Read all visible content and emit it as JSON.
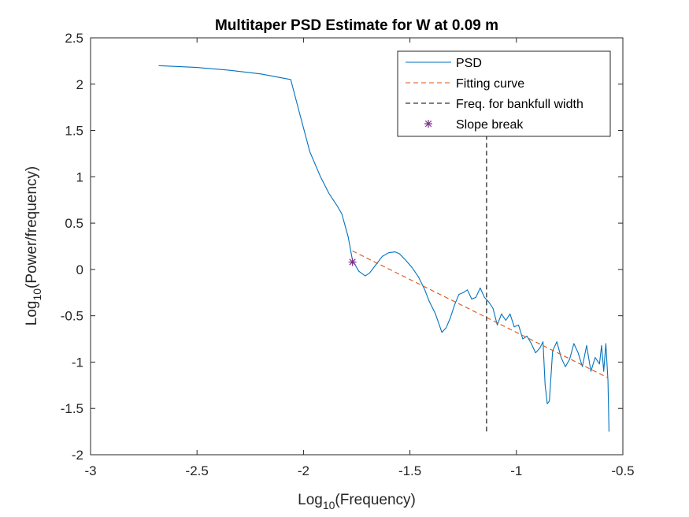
{
  "chart_data": {
    "type": "line",
    "title": "Multitaper PSD Estimate for W at 0.09 m",
    "xlabel": {
      "main": "Log",
      "sub": "10",
      "rest": "(Frequency)"
    },
    "ylabel": {
      "main": "Log",
      "sub": "10",
      "rest": "(Power/frequency)"
    },
    "xlim": [
      -3,
      -0.5
    ],
    "ylim": [
      -2,
      2.5
    ],
    "xticks": [
      -3,
      -2.5,
      -2,
      -1.5,
      -1,
      -0.5
    ],
    "xtick_labels": [
      "-3",
      "-2.5",
      "-2",
      "-1.5",
      "-1",
      "-0.5"
    ],
    "yticks": [
      -2,
      -1.5,
      -1,
      -0.5,
      0,
      0.5,
      1,
      1.5,
      2,
      2.5
    ],
    "ytick_labels": [
      "-2",
      "-1.5",
      "-1",
      "-0.5",
      "0",
      "0.5",
      "1",
      "1.5",
      "2",
      "2.5"
    ],
    "grid": false,
    "legend_position": "top-right",
    "series": [
      {
        "name": "PSD",
        "color": "#0072BD",
        "style": "solid",
        "x": [
          -2.68,
          -2.5,
          -2.35,
          -2.2,
          -2.06,
          -2.02,
          -1.97,
          -1.92,
          -1.88,
          -1.84,
          -1.82,
          -1.79,
          -1.77,
          -1.74,
          -1.71,
          -1.69,
          -1.66,
          -1.63,
          -1.6,
          -1.57,
          -1.55,
          -1.52,
          -1.49,
          -1.46,
          -1.43,
          -1.41,
          -1.38,
          -1.35,
          -1.33,
          -1.31,
          -1.29,
          -1.27,
          -1.25,
          -1.23,
          -1.21,
          -1.19,
          -1.17,
          -1.15,
          -1.13,
          -1.11,
          -1.09,
          -1.07,
          -1.05,
          -1.03,
          -1.01,
          -0.99,
          -0.97,
          -0.95,
          -0.93,
          -0.91,
          -0.89,
          -0.875,
          -0.865,
          -0.855,
          -0.845,
          -0.83,
          -0.81,
          -0.79,
          -0.77,
          -0.75,
          -0.73,
          -0.71,
          -0.69,
          -0.67,
          -0.65,
          -0.63,
          -0.61,
          -0.6,
          -0.59,
          -0.58,
          -0.57,
          -0.565
        ],
        "y": [
          2.2,
          2.18,
          2.15,
          2.11,
          2.05,
          1.7,
          1.27,
          1.0,
          0.82,
          0.68,
          0.6,
          0.35,
          0.1,
          -0.02,
          -0.07,
          -0.04,
          0.05,
          0.14,
          0.18,
          0.19,
          0.17,
          0.1,
          0.02,
          -0.08,
          -0.22,
          -0.34,
          -0.48,
          -0.68,
          -0.63,
          -0.52,
          -0.38,
          -0.27,
          -0.25,
          -0.22,
          -0.32,
          -0.3,
          -0.2,
          -0.3,
          -0.35,
          -0.42,
          -0.6,
          -0.48,
          -0.55,
          -0.48,
          -0.62,
          -0.6,
          -0.75,
          -0.72,
          -0.8,
          -0.9,
          -0.85,
          -0.78,
          -1.25,
          -1.45,
          -1.42,
          -0.88,
          -0.78,
          -0.95,
          -1.05,
          -0.97,
          -0.8,
          -0.9,
          -1.05,
          -0.82,
          -1.1,
          -0.95,
          -1.02,
          -0.82,
          -1.1,
          -0.8,
          -1.2,
          -1.75
        ]
      },
      {
        "name": "Fitting curve",
        "color": "#D95319",
        "style": "dashed",
        "x": [
          -1.77,
          -0.57
        ],
        "y": [
          0.2,
          -1.17
        ]
      },
      {
        "name": "Freq. for bankfull width",
        "color": "#000000",
        "style": "dashed",
        "x": [
          -1.14,
          -1.14
        ],
        "y": [
          1.45,
          -1.75
        ]
      },
      {
        "name": "Slope break",
        "color": "#7E2F8E",
        "style": "marker",
        "marker": "asterisk",
        "x": [
          -1.77
        ],
        "y": [
          0.08
        ]
      }
    ]
  }
}
